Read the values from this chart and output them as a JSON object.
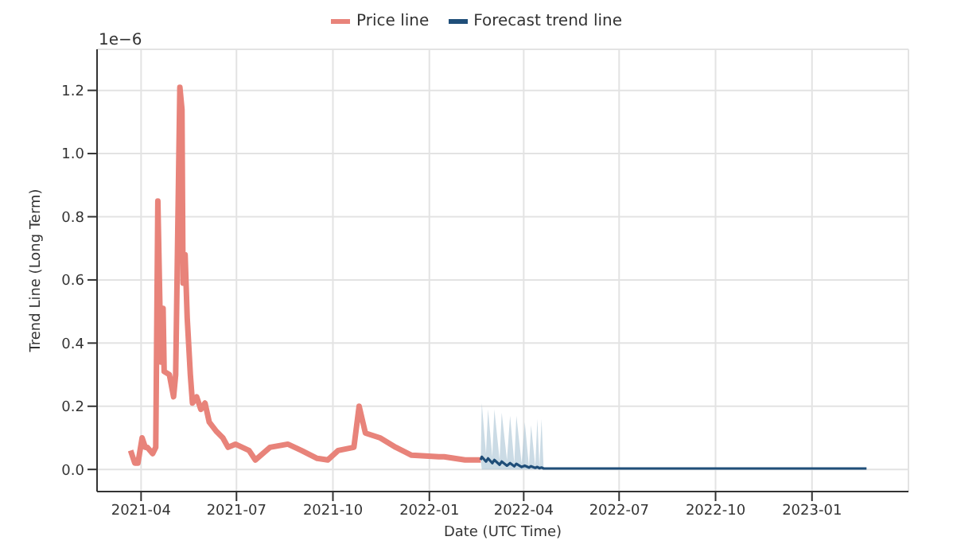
{
  "chart_data": {
    "type": "line",
    "xlabel": "Date (UTC Time)",
    "ylabel": "Trend Line (Long Term)",
    "annotations": [
      "1e−6"
    ],
    "xlim": [
      "2021-02-18",
      "2023-04-03"
    ],
    "xticks": [
      "2021-04",
      "2021-07",
      "2021-10",
      "2022-01",
      "2022-04",
      "2022-07",
      "2022-10",
      "2023-01"
    ],
    "ylim": [
      -0.07,
      1.33
    ],
    "yticks": [
      {
        "value": 0,
        "label": "0.0"
      },
      {
        "value": 0.2,
        "label": "0.2"
      },
      {
        "value": 0.4,
        "label": "0.4"
      },
      {
        "value": 0.6,
        "label": "0.6"
      },
      {
        "value": 0.8,
        "label": "0.8"
      },
      {
        "value": 1.0,
        "label": "1.0"
      },
      {
        "value": 1.2,
        "label": "1.2"
      }
    ],
    "grid": true,
    "legend": "top",
    "marker": "none",
    "line_style": "solid",
    "series": [
      {
        "name": "Price line",
        "color": "#e8837a",
        "x": [
          "2021-03-22",
          "2021-03-26",
          "2021-03-29",
          "2021-04-02",
          "2021-04-05",
          "2021-04-07",
          "2021-04-12",
          "2021-04-15",
          "2021-04-17",
          "2021-04-19",
          "2021-04-20",
          "2021-04-22",
          "2021-04-23",
          "2021-04-28",
          "2021-05-02",
          "2021-05-04",
          "2021-05-08",
          "2021-05-10",
          "2021-05-11",
          "2021-05-13",
          "2021-05-15",
          "2021-05-18",
          "2021-05-20",
          "2021-05-24",
          "2021-05-28",
          "2021-06-01",
          "2021-06-05",
          "2021-06-12",
          "2021-06-18",
          "2021-06-23",
          "2021-06-30",
          "2021-07-13",
          "2021-07-19",
          "2021-08-02",
          "2021-08-19",
          "2021-09-01",
          "2021-09-16",
          "2021-09-26",
          "2021-10-06",
          "2021-10-21",
          "2021-10-26",
          "2021-11-01",
          "2021-11-15",
          "2021-11-30",
          "2021-12-15",
          "2022-01-10",
          "2022-01-15",
          "2022-02-04",
          "2022-02-19"
        ],
        "values": [
          0.06,
          0.02,
          0.02,
          0.1,
          0.07,
          0.07,
          0.05,
          0.07,
          0.85,
          0.51,
          0.34,
          0.51,
          0.31,
          0.3,
          0.23,
          0.3,
          1.21,
          1.14,
          0.59,
          0.68,
          0.48,
          0.3,
          0.21,
          0.23,
          0.19,
          0.21,
          0.15,
          0.12,
          0.1,
          0.07,
          0.08,
          0.06,
          0.03,
          0.07,
          0.08,
          0.06,
          0.035,
          0.03,
          0.06,
          0.07,
          0.2,
          0.115,
          0.1,
          0.07,
          0.045,
          0.04,
          0.04,
          0.03,
          0.03
        ]
      },
      {
        "name": "Forecast trend line",
        "color": "#1f4e79",
        "x": [
          "2022-02-19",
          "2022-02-20",
          "2022-02-24",
          "2022-02-26",
          "2022-03-02",
          "2022-03-04",
          "2022-03-09",
          "2022-03-11",
          "2022-03-16",
          "2022-03-19",
          "2022-03-23",
          "2022-03-25",
          "2022-03-30",
          "2022-04-02",
          "2022-04-06",
          "2022-04-08",
          "2022-04-12",
          "2022-04-14",
          "2022-04-16",
          "2022-04-18",
          "2022-04-20",
          "2023-02-22"
        ],
        "values": [
          0.03,
          0.04,
          0.025,
          0.035,
          0.02,
          0.03,
          0.015,
          0.025,
          0.012,
          0.02,
          0.01,
          0.018,
          0.008,
          0.012,
          0.006,
          0.01,
          0.005,
          0.008,
          0.004,
          0.006,
          0.003,
          0.003
        ],
        "lower": [
          0.03,
          0,
          0,
          0,
          0,
          0,
          0,
          0,
          0,
          0,
          0,
          0,
          0,
          0,
          0,
          0,
          0,
          0,
          0,
          0,
          0.003,
          null
        ],
        "upper": [
          0.03,
          0.21,
          0.05,
          0.19,
          0.04,
          0.19,
          0.03,
          0.18,
          0.03,
          0.17,
          0.02,
          0.17,
          0.02,
          0.15,
          0.01,
          0.14,
          0.01,
          0.16,
          0.01,
          0.16,
          0.003,
          null
        ]
      }
    ]
  }
}
